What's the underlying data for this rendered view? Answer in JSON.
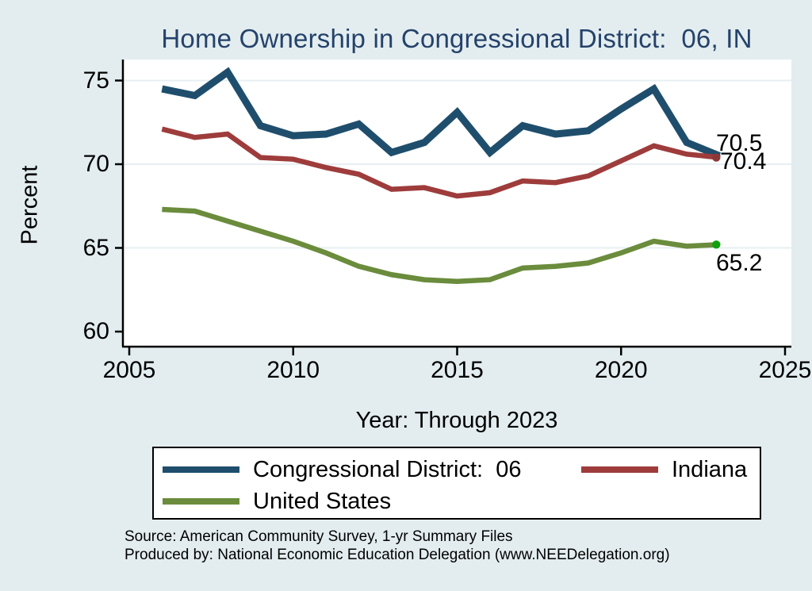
{
  "title": "Home Ownership in Congressional District:  06, IN",
  "y_axis": {
    "label": "Percent",
    "ticks": [
      "75",
      "70",
      "65",
      "60"
    ],
    "tick_values": [
      75,
      70,
      65,
      60
    ]
  },
  "x_axis": {
    "label": "Year: Through 2023",
    "ticks": [
      "2005",
      "2010",
      "2015",
      "2020",
      "2025"
    ],
    "tick_values": [
      2005,
      2010,
      2015,
      2020,
      2025
    ]
  },
  "legend": {
    "items": [
      {
        "label": "Congressional District:  06",
        "color": "#1f4e6d"
      },
      {
        "label": "Indiana",
        "color": "#9e3c3c"
      },
      {
        "label": "United States",
        "color": "#6a8c3c"
      }
    ]
  },
  "source_line1": "Source: American Community Survey, 1-yr Summary Files",
  "source_line2": "Produced by: National Economic Education Delegation (www.NEEDelegation.org)",
  "chart_data": {
    "type": "line",
    "title": "Home Ownership in Congressional District:  06, IN",
    "xlabel": "Year: Through 2023",
    "ylabel": "Percent",
    "x": [
      2006,
      2007,
      2008,
      2009,
      2010,
      2011,
      2012,
      2013,
      2014,
      2015,
      2016,
      2017,
      2018,
      2019,
      2020,
      2021,
      2022,
      2023
    ],
    "series": [
      {
        "name": "Congressional District:  06",
        "color": "#1f4e6d",
        "line_width": 9,
        "values": [
          74.5,
          74.1,
          75.5,
          72.3,
          71.7,
          71.8,
          72.4,
          70.7,
          71.3,
          73.1,
          70.7,
          72.3,
          71.8,
          72.0,
          73.3,
          74.5,
          71.3,
          70.5
        ],
        "end_label": "70.5",
        "marker_color": "#1f4e6d"
      },
      {
        "name": "Indiana",
        "color": "#9e3c3c",
        "line_width": 6.5,
        "values": [
          72.1,
          71.6,
          71.8,
          70.4,
          70.3,
          69.8,
          69.4,
          68.5,
          68.6,
          68.1,
          68.3,
          69.0,
          68.9,
          69.3,
          70.2,
          71.1,
          70.6,
          70.4
        ],
        "end_label": "70.4",
        "marker_color": "#8d3838"
      },
      {
        "name": "United States",
        "color": "#6a8c3c",
        "line_width": 6.5,
        "values": [
          67.3,
          67.2,
          66.6,
          66.0,
          65.4,
          64.7,
          63.9,
          63.4,
          63.1,
          63.0,
          63.1,
          63.8,
          63.9,
          64.1,
          64.7,
          65.4,
          65.1,
          65.2
        ],
        "end_label": "65.2",
        "marker_color": "#0fa00f"
      }
    ],
    "ylim": [
      59.2,
      76.3
    ],
    "xlim": [
      2004.8,
      2025.2
    ],
    "grid": "horizontal",
    "gridlines_y": [
      75,
      70,
      65
    ],
    "legend_position": "bottom"
  },
  "colors": {
    "figure_background": "#e3edef",
    "plot_background": "#ffffff",
    "title_text": "#24426b",
    "gridline": "#e7eff2",
    "axis": "#000000"
  }
}
